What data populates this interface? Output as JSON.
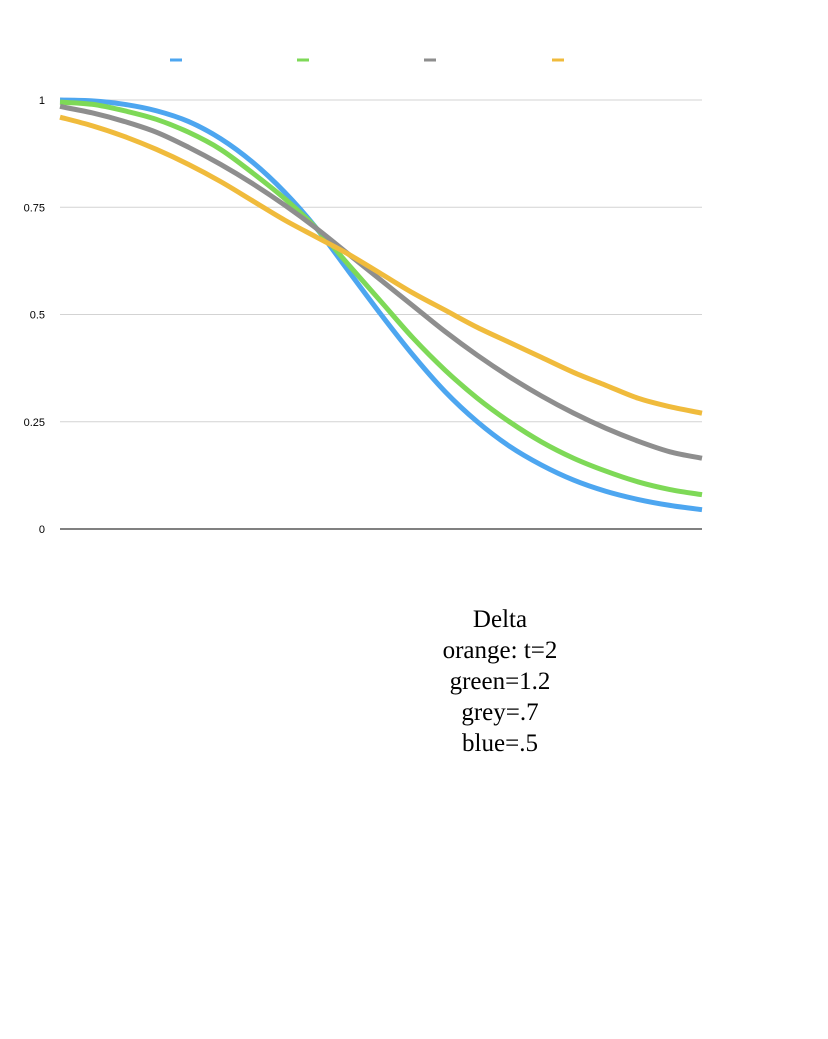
{
  "chart_data": {
    "type": "line",
    "title": "",
    "xlabel": "",
    "ylabel": "",
    "ylim": [
      0,
      1
    ],
    "yticks": [
      "0",
      "0.25",
      "0.5",
      "0.75",
      "1"
    ],
    "grid": true,
    "legend": "top, four color swatches without text",
    "x": [
      0,
      0.05,
      0.1,
      0.15,
      0.2,
      0.25,
      0.3,
      0.35,
      0.4,
      0.45,
      0.5,
      0.55,
      0.6,
      0.65,
      0.7,
      0.75,
      0.8,
      0.85,
      0.9,
      0.95,
      1
    ],
    "series": [
      {
        "color": "#4da6f0",
        "values": [
          1.0,
          0.998,
          0.99,
          0.975,
          0.95,
          0.91,
          0.855,
          0.785,
          0.7,
          0.6,
          0.5,
          0.405,
          0.32,
          0.25,
          0.193,
          0.149,
          0.114,
          0.088,
          0.069,
          0.055,
          0.045
        ]
      },
      {
        "color": "#7ed957",
        "values": [
          0.995,
          0.99,
          0.975,
          0.955,
          0.925,
          0.885,
          0.83,
          0.77,
          0.7,
          0.615,
          0.53,
          0.445,
          0.37,
          0.305,
          0.25,
          0.203,
          0.165,
          0.135,
          0.11,
          0.092,
          0.08
        ]
      },
      {
        "color": "#8e8e8e",
        "values": [
          0.985,
          0.97,
          0.95,
          0.925,
          0.89,
          0.85,
          0.805,
          0.755,
          0.7,
          0.64,
          0.58,
          0.52,
          0.46,
          0.405,
          0.355,
          0.31,
          0.27,
          0.235,
          0.205,
          0.18,
          0.165
        ]
      },
      {
        "color": "#f0bb3c",
        "values": [
          0.96,
          0.94,
          0.915,
          0.885,
          0.85,
          0.81,
          0.765,
          0.72,
          0.68,
          0.64,
          0.595,
          0.55,
          0.51,
          0.47,
          0.435,
          0.4,
          0.365,
          0.335,
          0.305,
          0.285,
          0.27
        ]
      }
    ]
  },
  "annotation": {
    "lines": [
      "Delta",
      "orange: t=2",
      "green=1.2",
      "grey=.7",
      "blue=.5"
    ]
  }
}
